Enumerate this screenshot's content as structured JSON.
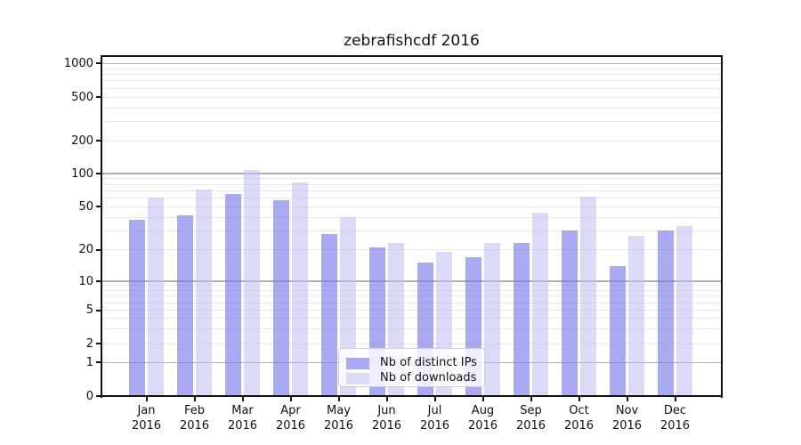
{
  "title": "zebrafishcdf 2016",
  "colors": {
    "bar_distinct_ips": "rgba(120,120,235,0.63)",
    "bar_distinct_ips_solid": "#aaaaf2",
    "bar_downloads": "rgba(190,190,240,0.55)",
    "bar_downloads_solid": "#dbdbf7",
    "grid_major": "#b0b0b0",
    "grid_minor": "#e8e8e8",
    "axis": "#111111",
    "text": "#111111",
    "legend_border": "#cfcfcf",
    "legend_background": "rgba(255,255,255,0.8)"
  },
  "chart_data": {
    "type": "bar",
    "title": "zebrafishcdf 2016",
    "categories": [
      "Jan",
      "Feb",
      "Mar",
      "Apr",
      "May",
      "Jun",
      "Jul",
      "Aug",
      "Sep",
      "Oct",
      "Nov",
      "Dec"
    ],
    "x_year": "2016",
    "series": [
      {
        "name": "Nb of distinct IPs",
        "key": "distinct-ips",
        "values": [
          38,
          42,
          65,
          57,
          28,
          21,
          15,
          17,
          23,
          30,
          14,
          30
        ]
      },
      {
        "name": "Nb of downloads",
        "key": "downloads",
        "values": [
          60,
          71,
          108,
          83,
          40,
          23,
          19,
          23,
          44,
          62,
          27,
          33
        ]
      }
    ],
    "y_ticks": [
      0,
      1,
      2,
      5,
      10,
      20,
      50,
      100,
      200,
      500,
      1000
    ],
    "y_minor_gridlines": [
      2,
      3,
      4,
      5,
      6,
      7,
      8,
      9,
      20,
      30,
      40,
      50,
      60,
      70,
      80,
      90,
      200,
      300,
      400,
      500,
      600,
      700,
      800,
      900
    ],
    "y_major_gridlines": [
      1,
      10,
      100,
      1000
    ],
    "y_scale": "symlog",
    "ylim": [
      0,
      1200
    ],
    "grid": true,
    "legend_position": "lower center"
  }
}
